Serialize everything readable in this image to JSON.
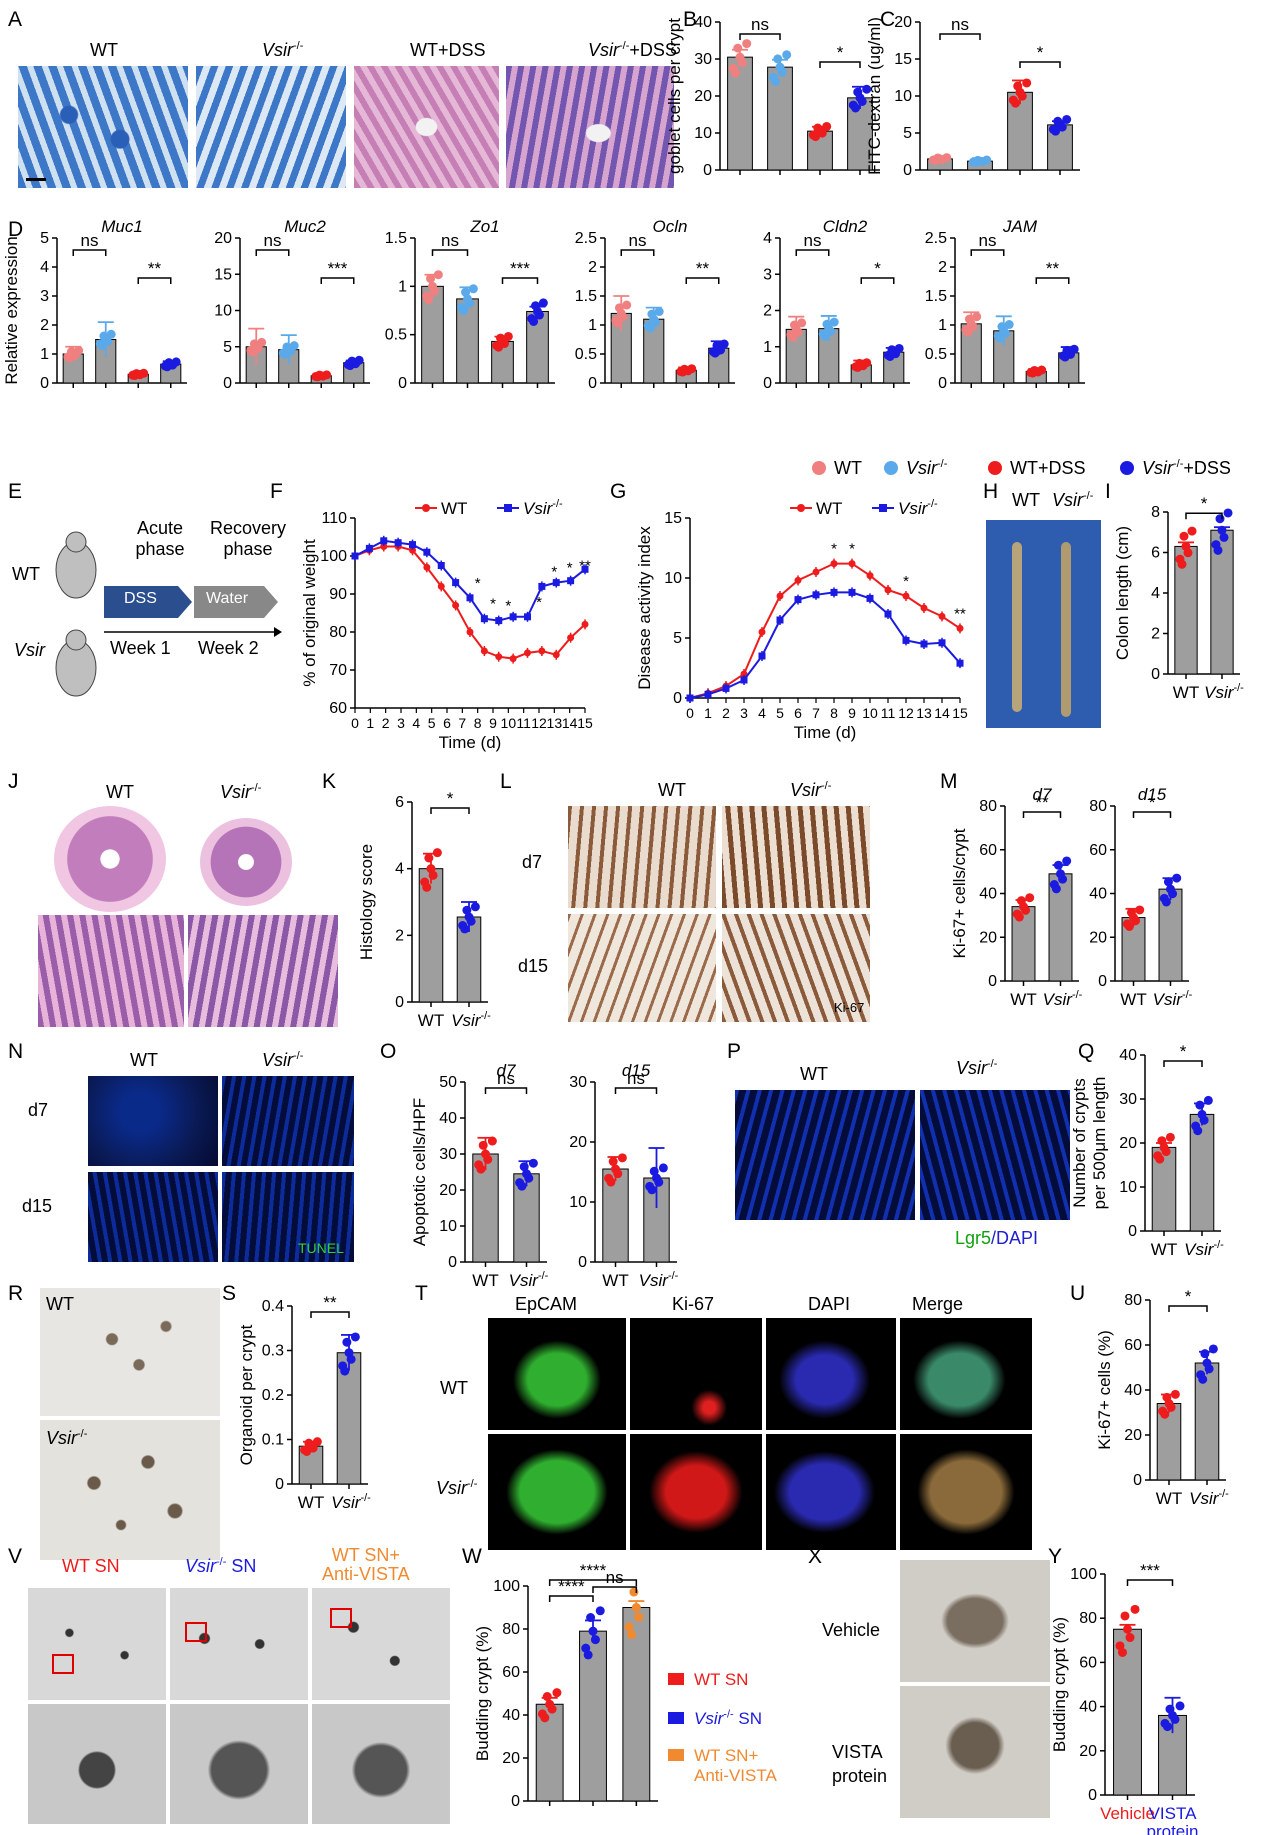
{
  "panels": {
    "A": {
      "letter": "A",
      "labels": [
        "WT",
        "Vsir",
        "WT+DSS",
        "Vsir",
        "+DSS"
      ]
    },
    "B": {
      "letter": "B"
    },
    "C": {
      "letter": "C"
    },
    "D": {
      "letter": "D"
    },
    "E": {
      "letter": "E",
      "wt": "WT",
      "ko": "Vsir",
      "acute": "Acute",
      "acute2": "phase",
      "recovery": "Recovery",
      "recovery2": "phase",
      "dss": "DSS",
      "water": "Water",
      "week1": "Week 1",
      "week2": "Week 2"
    },
    "F": {
      "letter": "F"
    },
    "G": {
      "letter": "G"
    },
    "H": {
      "letter": "H",
      "wt": "WT",
      "ko": "Vsir"
    },
    "I": {
      "letter": "I"
    },
    "J": {
      "letter": "J",
      "wt": "WT",
      "ko": "Vsir"
    },
    "K": {
      "letter": "K"
    },
    "L": {
      "letter": "L",
      "wt": "WT",
      "ko": "Vsir",
      "d7": "d7",
      "d15": "d15",
      "stain": "Ki-67"
    },
    "M": {
      "letter": "M"
    },
    "N": {
      "letter": "N",
      "wt": "WT",
      "ko": "Vsir",
      "d7": "d7",
      "d15": "d15",
      "stain": "TUNEL"
    },
    "O": {
      "letter": "O"
    },
    "P": {
      "letter": "P",
      "wt": "WT",
      "ko": "Vsir",
      "lgr5": "Lgr5",
      "dapi": "/DAPI"
    },
    "Q": {
      "letter": "Q"
    },
    "R": {
      "letter": "R",
      "wt": "WT",
      "ko": "Vsir"
    },
    "S": {
      "letter": "S"
    },
    "T": {
      "letter": "T",
      "cols": [
        "EpCAM",
        "Ki-67",
        "DAPI",
        "Merge"
      ],
      "wt": "WT",
      "ko": "Vsir"
    },
    "U": {
      "letter": "U"
    },
    "V": {
      "letter": "V",
      "c1": "WT SN",
      "c2": "Vsir",
      "c2b": " SN",
      "c3a": "WT SN+",
      "c3b": "Anti-VISTA"
    },
    "W": {
      "letter": "W"
    },
    "X": {
      "letter": "X",
      "vehicle": "Vehicle",
      "vista1": "VISTA",
      "vista2": "protein"
    },
    "Y": {
      "letter": "Y"
    }
  },
  "sup": "-/-",
  "colors": {
    "wt": "#f08080",
    "ko": "#5aa9ea",
    "wtdss": "#ee1c1c",
    "kodss": "#1a1ae0",
    "orange": "#f08a30",
    "bar": "#999999"
  },
  "legendD": [
    {
      "name": "WT",
      "color": "#f08080"
    },
    {
      "name": "Vsir",
      "sup": "-/-",
      "color": "#5aa9ea"
    },
    {
      "name": "WT+DSS",
      "color": "#ee1c1c"
    },
    {
      "name": "Vsir",
      "sup": "-/-",
      "suffix": "+DSS",
      "color": "#1a1ae0"
    }
  ],
  "legendW": [
    {
      "name": "WT SN",
      "color": "#ee1c1c"
    },
    {
      "name": "Vsir",
      "sup": "-/-",
      "suffix": " SN",
      "color": "#1a1ae0"
    },
    {
      "name": "WT SN+",
      "name2": "Anti-VISTA",
      "color": "#f08a30"
    }
  ],
  "chart_data": [
    {
      "id": "B",
      "type": "bar",
      "ylabel": "goblet cells per crypt",
      "ylim": [
        0,
        40
      ],
      "ticks": [
        0,
        10,
        20,
        30,
        40
      ],
      "values": [
        30.5,
        27.8,
        10.5,
        19.5
      ],
      "errors": [
        2,
        2,
        1.2,
        3
      ],
      "colors": [
        "#f08080",
        "#5aa9ea",
        "#ee1c1c",
        "#1a1ae0"
      ],
      "sig": [
        {
          "a": 0,
          "b": 1,
          "label": "ns"
        },
        {
          "a": 2,
          "b": 3,
          "label": "*"
        }
      ]
    },
    {
      "id": "C",
      "type": "bar",
      "ylabel": "FITC-dextran (ug/ml)",
      "ylim": [
        0,
        20
      ],
      "ticks": [
        0,
        5,
        10,
        15,
        20
      ],
      "values": [
        1.5,
        1.2,
        10.5,
        6.1
      ],
      "errors": [
        0.2,
        0.4,
        1.6,
        0.5
      ],
      "colors": [
        "#f08080",
        "#5aa9ea",
        "#ee1c1c",
        "#1a1ae0"
      ],
      "sig": [
        {
          "a": 0,
          "b": 1,
          "label": "ns"
        },
        {
          "a": 2,
          "b": 3,
          "label": "*"
        }
      ]
    },
    {
      "id": "D1",
      "type": "bar",
      "title": "Muc1",
      "ylabel": "Relative expression",
      "ylim": [
        0,
        5
      ],
      "ticks": [
        0,
        1,
        2,
        3,
        4,
        5
      ],
      "values": [
        1.0,
        1.5,
        0.3,
        0.65
      ],
      "errors": [
        0.25,
        0.6,
        0.05,
        0.1
      ],
      "colors": [
        "#f08080",
        "#5aa9ea",
        "#ee1c1c",
        "#1a1ae0"
      ],
      "sig": [
        {
          "a": 0,
          "b": 1,
          "label": "ns"
        },
        {
          "a": 2,
          "b": 3,
          "label": "**"
        }
      ]
    },
    {
      "id": "D2",
      "type": "bar",
      "title": "Muc2",
      "ylim": [
        0,
        20
      ],
      "ticks": [
        0,
        5,
        10,
        15,
        20
      ],
      "values": [
        5.0,
        4.6,
        1.0,
        2.8
      ],
      "errors": [
        2.5,
        2,
        0.2,
        0.3
      ],
      "colors": [
        "#f08080",
        "#5aa9ea",
        "#ee1c1c",
        "#1a1ae0"
      ],
      "sig": [
        {
          "a": 0,
          "b": 1,
          "label": "ns"
        },
        {
          "a": 2,
          "b": 3,
          "label": "***"
        }
      ]
    },
    {
      "id": "D3",
      "type": "bar",
      "title": "Zo1",
      "ylim": [
        0,
        1.5
      ],
      "ticks": [
        0,
        0.5,
        1.0,
        1.5
      ],
      "values": [
        1.0,
        0.87,
        0.43,
        0.74
      ],
      "errors": [
        0.12,
        0.12,
        0.05,
        0.05
      ],
      "colors": [
        "#f08080",
        "#5aa9ea",
        "#ee1c1c",
        "#1a1ae0"
      ],
      "sig": [
        {
          "a": 0,
          "b": 1,
          "label": "ns"
        },
        {
          "a": 2,
          "b": 3,
          "label": "***"
        }
      ]
    },
    {
      "id": "D4",
      "type": "bar",
      "title": "Ocln",
      "ylim": [
        0,
        2.5
      ],
      "ticks": [
        0,
        0.5,
        1.0,
        1.5,
        2.0,
        2.5
      ],
      "values": [
        1.2,
        1.1,
        0.22,
        0.6
      ],
      "errors": [
        0.3,
        0.2,
        0.05,
        0.12
      ],
      "colors": [
        "#f08080",
        "#5aa9ea",
        "#ee1c1c",
        "#1a1ae0"
      ],
      "sig": [
        {
          "a": 0,
          "b": 1,
          "label": "ns"
        },
        {
          "a": 2,
          "b": 3,
          "label": "**"
        }
      ]
    },
    {
      "id": "D5",
      "type": "bar",
      "title": "Cldn2",
      "ylim": [
        0,
        4
      ],
      "ticks": [
        0,
        1,
        2,
        3,
        4
      ],
      "values": [
        1.48,
        1.5,
        0.5,
        0.85
      ],
      "errors": [
        0.35,
        0.35,
        0.12,
        0.12
      ],
      "colors": [
        "#f08080",
        "#5aa9ea",
        "#ee1c1c",
        "#1a1ae0"
      ],
      "sig": [
        {
          "a": 0,
          "b": 1,
          "label": "ns"
        },
        {
          "a": 2,
          "b": 3,
          "label": "*"
        }
      ]
    },
    {
      "id": "D6",
      "type": "bar",
      "title": "JAM",
      "ylim": [
        0,
        2.5
      ],
      "ticks": [
        0,
        0.5,
        1.0,
        1.5,
        2.0,
        2.5
      ],
      "values": [
        1.02,
        0.9,
        0.2,
        0.52
      ],
      "errors": [
        0.2,
        0.25,
        0.04,
        0.1
      ],
      "colors": [
        "#f08080",
        "#5aa9ea",
        "#ee1c1c",
        "#1a1ae0"
      ],
      "sig": [
        {
          "a": 0,
          "b": 1,
          "label": "ns"
        },
        {
          "a": 2,
          "b": 3,
          "label": "**"
        }
      ]
    },
    {
      "id": "F",
      "type": "line",
      "ylabel": "% of original weight",
      "xlabel": "Time (d)",
      "ylim": [
        60,
        110
      ],
      "ticks": [
        60,
        70,
        80,
        90,
        100,
        110
      ],
      "xlim": [
        0,
        15
      ],
      "series": [
        {
          "name": "WT",
          "color": "#ee1c1c",
          "values": [
            100,
            101.5,
            102.5,
            102.5,
            101.5,
            97,
            92,
            87,
            80,
            75,
            73.5,
            73,
            74.5,
            75,
            74,
            78.5,
            82
          ]
        },
        {
          "name": "Vsir",
          "color": "#1a1ae0",
          "values": [
            100,
            102,
            104,
            103.5,
            103,
            101,
            97.5,
            93,
            89,
            83.5,
            83,
            84,
            84,
            92,
            93,
            93.5,
            96.5
          ]
        }
      ],
      "stars": [
        {
          "x": 8,
          "t": "*"
        },
        {
          "x": 9,
          "t": "*"
        },
        {
          "x": 10,
          "t": "*"
        },
        {
          "x": 12,
          "t": "*"
        },
        {
          "x": 13,
          "t": "*"
        },
        {
          "x": 14,
          "t": "*"
        },
        {
          "x": 15,
          "t": "**"
        }
      ]
    },
    {
      "id": "G",
      "type": "line",
      "ylabel": "Disease activity index",
      "xlabel": "Time (d)",
      "ylim": [
        0,
        15
      ],
      "ticks": [
        0,
        5,
        10,
        15
      ],
      "xlim": [
        0,
        15
      ],
      "series": [
        {
          "name": "WT",
          "color": "#ee1c1c",
          "values": [
            0,
            0.4,
            1,
            2,
            5.5,
            8.5,
            9.8,
            10.5,
            11.2,
            11.2,
            10.2,
            9,
            8.5,
            7.5,
            6.8,
            5.8
          ]
        },
        {
          "name": "Vsir",
          "color": "#1a1ae0",
          "values": [
            0,
            0.3,
            0.8,
            1.5,
            3.5,
            6.5,
            8.2,
            8.6,
            8.8,
            8.8,
            8.3,
            7,
            4.8,
            4.5,
            4.6,
            2.9
          ]
        }
      ],
      "stars": [
        {
          "x": 8,
          "t": "*"
        },
        {
          "x": 9,
          "t": "*"
        },
        {
          "x": 12,
          "t": "*"
        },
        {
          "x": 15,
          "t": "**"
        }
      ]
    },
    {
      "id": "I",
      "type": "bar",
      "ylabel": "Colon length (cm)",
      "ylim": [
        0,
        8
      ],
      "ticks": [
        0,
        2,
        4,
        6,
        8
      ],
      "values": [
        6.3,
        7.1
      ],
      "errors": [
        0.2,
        0.15
      ],
      "colors": [
        "#ee1c1c",
        "#1a1ae0"
      ],
      "categories": [
        "WT",
        "Vsir"
      ],
      "sig": [
        {
          "a": 0,
          "b": 1,
          "label": "*"
        }
      ]
    },
    {
      "id": "K",
      "type": "bar",
      "ylabel": "Histology score",
      "ylim": [
        0,
        6
      ],
      "ticks": [
        0,
        2,
        4,
        6
      ],
      "values": [
        4.0,
        2.55
      ],
      "errors": [
        0.45,
        0.45
      ],
      "colors": [
        "#ee1c1c",
        "#1a1ae0"
      ],
      "categories": [
        "WT",
        "Vsir"
      ],
      "sig": [
        {
          "a": 0,
          "b": 1,
          "label": "*"
        }
      ]
    },
    {
      "id": "M1",
      "type": "bar",
      "title": "d7",
      "ylabel": "Ki-67+ cells/crypt",
      "ylim": [
        0,
        80
      ],
      "ticks": [
        0,
        20,
        40,
        60,
        80
      ],
      "values": [
        34,
        49
      ],
      "errors": [
        3,
        4
      ],
      "colors": [
        "#ee1c1c",
        "#1a1ae0"
      ],
      "categories": [
        "WT",
        "Vsir"
      ],
      "sig": [
        {
          "a": 0,
          "b": 1,
          "label": "**"
        }
      ]
    },
    {
      "id": "M2",
      "type": "bar",
      "title": "d15",
      "ylim": [
        0,
        80
      ],
      "ticks": [
        0,
        20,
        40,
        60,
        80
      ],
      "values": [
        29,
        42
      ],
      "errors": [
        4,
        5
      ],
      "colors": [
        "#ee1c1c",
        "#1a1ae0"
      ],
      "categories": [
        "WT",
        "Vsir"
      ],
      "sig": [
        {
          "a": 0,
          "b": 1,
          "label": "*"
        }
      ]
    },
    {
      "id": "O1",
      "type": "bar",
      "title": "d7",
      "ylabel": "Apoptotic cells/HPF",
      "ylim": [
        0,
        50
      ],
      "ticks": [
        0,
        10,
        20,
        30,
        40,
        50
      ],
      "values": [
        30,
        24.5
      ],
      "errors": [
        4.5,
        3.5
      ],
      "colors": [
        "#ee1c1c",
        "#1a1ae0"
      ],
      "categories": [
        "WT",
        "Vsir"
      ],
      "sig": [
        {
          "a": 0,
          "b": 1,
          "label": "ns"
        }
      ]
    },
    {
      "id": "O2",
      "type": "bar",
      "title": "d15",
      "ylim": [
        0,
        30
      ],
      "ticks": [
        0,
        10,
        20,
        30
      ],
      "values": [
        15.5,
        14
      ],
      "errors": [
        2,
        5
      ],
      "colors": [
        "#ee1c1c",
        "#1a1ae0"
      ],
      "categories": [
        "WT",
        "Vsir"
      ],
      "sig": [
        {
          "a": 0,
          "b": 1,
          "label": "ns"
        }
      ]
    },
    {
      "id": "Q",
      "type": "bar",
      "ylabel": "Number of crypts|per 500μm length",
      "ylim": [
        0,
        40
      ],
      "ticks": [
        0,
        10,
        20,
        30,
        40
      ],
      "values": [
        19,
        26.5
      ],
      "errors": [
        1,
        2.5
      ],
      "colors": [
        "#ee1c1c",
        "#1a1ae0"
      ],
      "categories": [
        "WT",
        "Vsir"
      ],
      "sig": [
        {
          "a": 0,
          "b": 1,
          "label": "*"
        }
      ]
    },
    {
      "id": "S",
      "type": "bar",
      "ylabel": "Organoid per crypt",
      "ylim": [
        0,
        0.4
      ],
      "ticks": [
        0,
        0.1,
        0.2,
        0.3,
        0.4
      ],
      "values": [
        0.085,
        0.295
      ],
      "errors": [
        0.01,
        0.04
      ],
      "colors": [
        "#ee1c1c",
        "#1a1ae0"
      ],
      "categories": [
        "WT",
        "Vsir"
      ],
      "sig": [
        {
          "a": 0,
          "b": 1,
          "label": "**"
        }
      ]
    },
    {
      "id": "U",
      "type": "bar",
      "ylabel": "Ki-67+ cells (%)",
      "ylim": [
        0,
        80
      ],
      "ticks": [
        0,
        20,
        40,
        60,
        80
      ],
      "values": [
        34,
        52
      ],
      "errors": [
        4,
        5
      ],
      "colors": [
        "#ee1c1c",
        "#1a1ae0"
      ],
      "categories": [
        "WT",
        "Vsir"
      ],
      "sig": [
        {
          "a": 0,
          "b": 1,
          "label": "*"
        }
      ]
    },
    {
      "id": "W",
      "type": "bar",
      "ylabel": "Budding crypt (%)",
      "ylim": [
        0,
        100
      ],
      "ticks": [
        0,
        20,
        40,
        60,
        80,
        100
      ],
      "values": [
        45,
        79,
        90
      ],
      "errors": [
        3,
        5,
        3
      ],
      "colors": [
        "#ee1c1c",
        "#1a1ae0",
        "#f08a30"
      ],
      "sig": [
        {
          "a": 0,
          "b": 1,
          "label": "****"
        },
        {
          "a": 1,
          "b": 2,
          "label": "ns"
        },
        {
          "a": 0,
          "b": 2,
          "label": "****"
        }
      ]
    },
    {
      "id": "Y",
      "type": "bar",
      "ylabel": "Budding crypt (%)",
      "ylim": [
        0,
        100
      ],
      "ticks": [
        0,
        20,
        40,
        60,
        80,
        100
      ],
      "values": [
        75,
        36
      ],
      "errors": [
        2,
        8
      ],
      "colors": [
        "#ee1c1c",
        "#1a1ae0"
      ],
      "categories": [
        "Vehicle",
        "VISTA|protein"
      ],
      "sig": [
        {
          "a": 0,
          "b": 1,
          "label": "***"
        }
      ]
    }
  ]
}
